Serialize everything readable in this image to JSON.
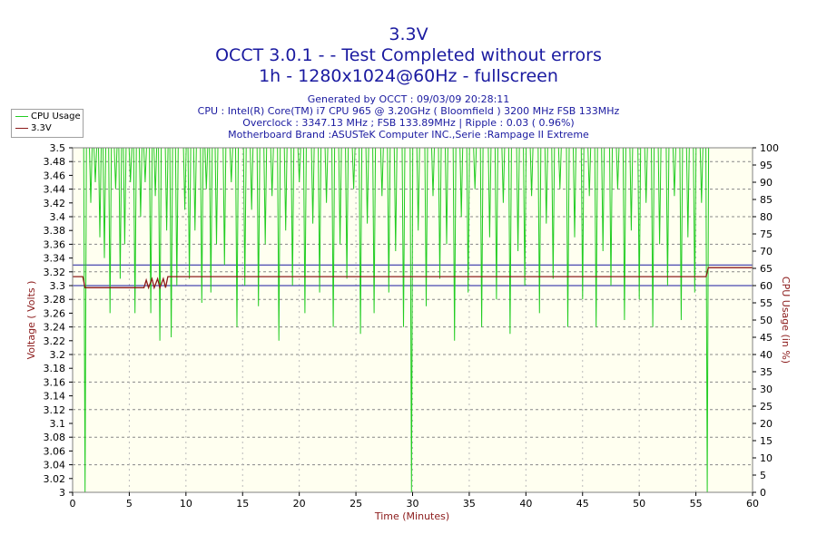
{
  "header": {
    "title": "3.3V",
    "subtitle1": "OCCT 3.0.1 -  - Test Completed without errors",
    "subtitle2": "1h - 1280x1024@60Hz - fullscreen",
    "generated": "Generated by OCCT : 09/03/09 20:28:11",
    "cpu": "CPU : Intel(R) Core(TM) i7 CPU 965 @ 3.20GHz ( Bloomfield ) 3200 MHz FSB 133MHz",
    "overclock": "Overclock : 3347.13 MHz ; FSB 133.89MHz | Ripple : 0.03 ( 0.96%)",
    "motherboard": "Motherboard Brand :ASUSTeK Computer INC.,Serie :Rampage II Extreme"
  },
  "legend": {
    "items": [
      {
        "label": "CPU Usage",
        "color": "#22cc22"
      },
      {
        "label": "3.3V",
        "color": "#8b1a1a"
      }
    ]
  },
  "chart_data": {
    "type": "line",
    "title": "3.3V",
    "xlabel": "Time (Minutes)",
    "ylabel": "Voltage ( Volts )",
    "y2label": "CPU Usage (in %)",
    "xlim": [
      0,
      60
    ],
    "ylim": [
      3.0,
      3.5
    ],
    "y2lim": [
      0,
      100
    ],
    "x_ticks": [
      0,
      5,
      10,
      15,
      20,
      25,
      30,
      35,
      40,
      45,
      50,
      55,
      60
    ],
    "y_ticks": [
      "3",
      "3.02",
      "3.04",
      "3.06",
      "3.08",
      "3.1",
      "3.12",
      "3.14",
      "3.16",
      "3.18",
      "3.2",
      "3.22",
      "3.24",
      "3.26",
      "3.28",
      "3.3",
      "3.32",
      "3.34",
      "3.36",
      "3.38",
      "3.4",
      "3.42",
      "3.44",
      "3.46",
      "3.48",
      "3.5"
    ],
    "y2_ticks": [
      0,
      5,
      10,
      15,
      20,
      25,
      30,
      35,
      40,
      45,
      50,
      55,
      60,
      65,
      70,
      75,
      80,
      85,
      90,
      95,
      100
    ],
    "reference_lines": [
      {
        "value": 3.3,
        "color": "#1a1aa0"
      },
      {
        "value": 3.33,
        "color": "#1a1aa0"
      }
    ],
    "series": [
      {
        "name": "3.3V",
        "axis": "left",
        "color": "#8b1a1a",
        "points": [
          [
            0,
            3.313
          ],
          [
            0.9,
            3.313
          ],
          [
            1.1,
            3.297
          ],
          [
            6.3,
            3.297
          ],
          [
            6.5,
            3.308
          ],
          [
            6.7,
            3.297
          ],
          [
            7.0,
            3.31
          ],
          [
            7.2,
            3.297
          ],
          [
            7.5,
            3.31
          ],
          [
            7.7,
            3.297
          ],
          [
            8.0,
            3.31
          ],
          [
            8.2,
            3.297
          ],
          [
            8.4,
            3.313
          ],
          [
            55.9,
            3.313
          ],
          [
            56.1,
            3.326
          ],
          [
            60,
            3.326
          ]
        ]
      },
      {
        "name": "CPU Usage",
        "axis": "right",
        "color": "#22cc22",
        "baseline": 100,
        "active_range": [
          0,
          56
        ],
        "dips": [
          [
            1.1,
            0
          ],
          [
            1.6,
            84
          ],
          [
            2.0,
            90
          ],
          [
            2.4,
            74
          ],
          [
            2.8,
            68
          ],
          [
            3.3,
            52
          ],
          [
            3.8,
            88
          ],
          [
            4.2,
            62
          ],
          [
            4.6,
            72
          ],
          [
            5.1,
            90
          ],
          [
            5.5,
            52
          ],
          [
            6.0,
            80
          ],
          [
            6.4,
            90
          ],
          [
            6.9,
            52
          ],
          [
            7.3,
            86
          ],
          [
            7.7,
            44
          ],
          [
            8.3,
            76
          ],
          [
            8.7,
            45
          ],
          [
            9.2,
            60
          ],
          [
            9.9,
            82
          ],
          [
            10.3,
            62
          ],
          [
            10.8,
            76
          ],
          [
            11.4,
            55
          ],
          [
            11.8,
            88
          ],
          [
            12.2,
            58
          ],
          [
            12.7,
            72
          ],
          [
            13.4,
            66
          ],
          [
            14.0,
            90
          ],
          [
            14.5,
            48
          ],
          [
            15.2,
            60
          ],
          [
            15.8,
            82
          ],
          [
            16.4,
            54
          ],
          [
            17.0,
            72
          ],
          [
            17.6,
            86
          ],
          [
            18.2,
            44
          ],
          [
            18.8,
            76
          ],
          [
            19.4,
            60
          ],
          [
            20.0,
            90
          ],
          [
            20.5,
            52
          ],
          [
            21.2,
            78
          ],
          [
            21.8,
            58
          ],
          [
            22.4,
            84
          ],
          [
            23.0,
            48
          ],
          [
            23.6,
            72
          ],
          [
            24.2,
            62
          ],
          [
            24.8,
            88
          ],
          [
            25.4,
            46
          ],
          [
            26.0,
            78
          ],
          [
            26.6,
            52
          ],
          [
            27.3,
            86
          ],
          [
            27.9,
            58
          ],
          [
            28.5,
            70
          ],
          [
            29.2,
            48
          ],
          [
            29.9,
            0
          ],
          [
            30.5,
            76
          ],
          [
            31.2,
            54
          ],
          [
            31.8,
            86
          ],
          [
            32.4,
            62
          ],
          [
            33.0,
            72
          ],
          [
            33.7,
            44
          ],
          [
            34.3,
            80
          ],
          [
            34.9,
            58
          ],
          [
            35.5,
            88
          ],
          [
            36.1,
            48
          ],
          [
            36.8,
            74
          ],
          [
            37.4,
            56
          ],
          [
            38.0,
            84
          ],
          [
            38.6,
            46
          ],
          [
            39.3,
            70
          ],
          [
            39.9,
            60
          ],
          [
            40.5,
            86
          ],
          [
            41.2,
            52
          ],
          [
            41.8,
            78
          ],
          [
            42.4,
            62
          ],
          [
            43.0,
            88
          ],
          [
            43.7,
            48
          ],
          [
            44.3,
            74
          ],
          [
            45.0,
            56
          ],
          [
            45.6,
            86
          ],
          [
            46.2,
            48
          ],
          [
            46.8,
            70
          ],
          [
            47.5,
            60
          ],
          [
            48.1,
            88
          ],
          [
            48.7,
            50
          ],
          [
            49.3,
            76
          ],
          [
            50.0,
            56
          ],
          [
            50.6,
            84
          ],
          [
            51.2,
            48
          ],
          [
            51.8,
            72
          ],
          [
            52.5,
            60
          ],
          [
            53.1,
            86
          ],
          [
            53.7,
            50
          ],
          [
            54.3,
            74
          ],
          [
            54.9,
            58
          ],
          [
            55.5,
            84
          ],
          [
            56.0,
            0
          ]
        ]
      }
    ]
  }
}
